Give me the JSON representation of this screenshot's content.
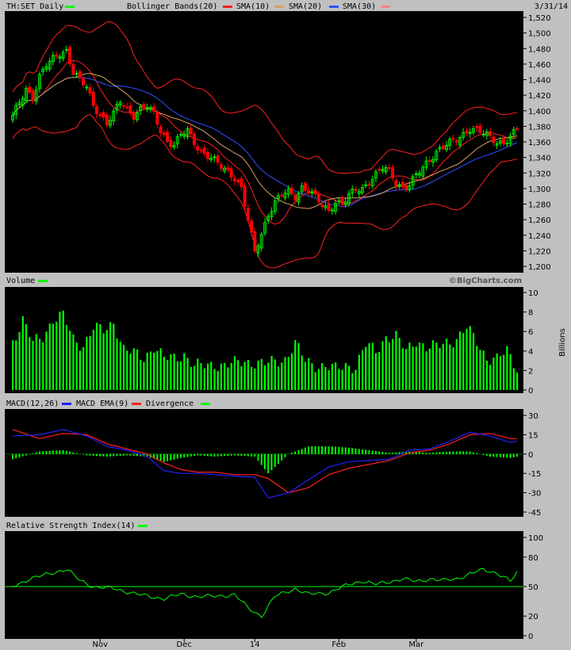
{
  "chart_data": [
    {
      "type": "candlestick",
      "panel": "price",
      "symbol_label": "TH:SET Daily",
      "date_label": "3/31/14",
      "legend": [
        {
          "name": "Bollinger Bands(20)",
          "color": "#ff2020"
        },
        {
          "name": "SMA(10)",
          "color": "#ff2020"
        },
        {
          "name": "SMA(20)",
          "color": "#d8a060"
        },
        {
          "name": "SMA(30)",
          "color": "#3050ff"
        }
      ],
      "ylim": [
        1200,
        1520
      ],
      "y_ticks": [
        "1,520",
        "1,500",
        "1,480",
        "1,460",
        "1,440",
        "1,420",
        "1,400",
        "1,380",
        "1,360",
        "1,340",
        "1,320",
        "1,300",
        "1,280",
        "1,260",
        "1,240",
        "1,220",
        "1,200"
      ],
      "x_tick_labels": [
        "Nov",
        "Dec",
        "14",
        "Feb",
        "Mar"
      ],
      "anchors_close": [
        [
          0,
          1392
        ],
        [
          2,
          1410
        ],
        [
          4,
          1428
        ],
        [
          6,
          1418
        ],
        [
          8,
          1444
        ],
        [
          10,
          1458
        ],
        [
          12,
          1466
        ],
        [
          14,
          1474
        ],
        [
          16,
          1478
        ],
        [
          18,
          1450
        ],
        [
          20,
          1438
        ],
        [
          22,
          1430
        ],
        [
          24,
          1408
        ],
        [
          26,
          1396
        ],
        [
          28,
          1384
        ],
        [
          30,
          1395
        ],
        [
          32,
          1412
        ],
        [
          34,
          1402
        ],
        [
          36,
          1395
        ],
        [
          38,
          1402
        ],
        [
          40,
          1405
        ],
        [
          42,
          1395
        ],
        [
          44,
          1375
        ],
        [
          46,
          1362
        ],
        [
          48,
          1356
        ],
        [
          50,
          1368
        ],
        [
          52,
          1374
        ],
        [
          54,
          1360
        ],
        [
          56,
          1348
        ],
        [
          58,
          1342
        ],
        [
          60,
          1335
        ],
        [
          62,
          1328
        ],
        [
          64,
          1322
        ],
        [
          66,
          1315
        ],
        [
          68,
          1300
        ],
        [
          70,
          1258
        ],
        [
          72,
          1218
        ],
        [
          74,
          1242
        ],
        [
          76,
          1268
        ],
        [
          78,
          1282
        ],
        [
          80,
          1292
        ],
        [
          82,
          1295
        ],
        [
          84,
          1290
        ],
        [
          86,
          1302
        ],
        [
          88,
          1298
        ],
        [
          90,
          1288
        ],
        [
          92,
          1278
        ],
        [
          94,
          1272
        ],
        [
          96,
          1284
        ],
        [
          98,
          1280
        ],
        [
          100,
          1290
        ],
        [
          102,
          1298
        ],
        [
          104,
          1300
        ],
        [
          106,
          1310
        ],
        [
          108,
          1318
        ],
        [
          110,
          1326
        ],
        [
          112,
          1322
        ],
        [
          114,
          1308
        ],
        [
          116,
          1302
        ],
        [
          118,
          1305
        ],
        [
          120,
          1316
        ],
        [
          122,
          1326
        ],
        [
          124,
          1338
        ],
        [
          126,
          1348
        ],
        [
          128,
          1354
        ],
        [
          130,
          1358
        ],
        [
          132,
          1362
        ],
        [
          134,
          1370
        ],
        [
          136,
          1378
        ],
        [
          138,
          1375
        ],
        [
          140,
          1370
        ],
        [
          142,
          1365
        ],
        [
          144,
          1360
        ],
        [
          146,
          1360
        ],
        [
          148,
          1366
        ],
        [
          150,
          1376
        ]
      ]
    },
    {
      "type": "bar",
      "panel": "volume",
      "title": "Volume",
      "ylabel": "Billions",
      "ylim": [
        0,
        10
      ],
      "y_ticks": [
        "10",
        "8",
        "6",
        "4",
        "2",
        "0"
      ],
      "anchors": [
        [
          0,
          5
        ],
        [
          3,
          7.2
        ],
        [
          6,
          4.8
        ],
        [
          9,
          5.5
        ],
        [
          12,
          7.3
        ],
        [
          15,
          7.6
        ],
        [
          18,
          5.2
        ],
        [
          21,
          4.6
        ],
        [
          24,
          6.4
        ],
        [
          27,
          6.0
        ],
        [
          30,
          7.0
        ],
        [
          33,
          4.2
        ],
        [
          36,
          3.7
        ],
        [
          39,
          3.3
        ],
        [
          42,
          4.5
        ],
        [
          45,
          3.2
        ],
        [
          48,
          3.3
        ],
        [
          51,
          3.7
        ],
        [
          54,
          2.4
        ],
        [
          57,
          2.5
        ],
        [
          60,
          2.7
        ],
        [
          63,
          2.5
        ],
        [
          66,
          2.7
        ],
        [
          69,
          3.0
        ],
        [
          72,
          2.8
        ],
        [
          75,
          2.6
        ],
        [
          78,
          3.0
        ],
        [
          81,
          3.2
        ],
        [
          84,
          4.7
        ],
        [
          87,
          3.0
        ],
        [
          90,
          2.6
        ],
        [
          93,
          2.4
        ],
        [
          96,
          2.1
        ],
        [
          99,
          2.6
        ],
        [
          102,
          2.4
        ],
        [
          105,
          4.6
        ],
        [
          108,
          4.0
        ],
        [
          111,
          5.5
        ],
        [
          114,
          5.4
        ],
        [
          117,
          4.0
        ],
        [
          120,
          5.2
        ],
        [
          123,
          4.3
        ],
        [
          126,
          4.4
        ],
        [
          129,
          5.0
        ],
        [
          132,
          5.2
        ],
        [
          135,
          6.3
        ],
        [
          138,
          5.0
        ],
        [
          141,
          3.3
        ],
        [
          144,
          3.1
        ],
        [
          147,
          4.0
        ],
        [
          150,
          2.3
        ]
      ]
    },
    {
      "type": "line",
      "panel": "macd",
      "title": "MACD(12,26)",
      "legend": [
        {
          "name": "MACD(12,26)",
          "color": "#2020ff"
        },
        {
          "name": "MACD EMA(9)",
          "color": "#ff2020"
        },
        {
          "name": "Divergence",
          "color": "#00ff00"
        }
      ],
      "ylim": [
        -45,
        30
      ],
      "y_ticks": [
        "30",
        "15",
        "0",
        "-15",
        "-30",
        "-45"
      ],
      "macd_anchors": [
        [
          0,
          14
        ],
        [
          8,
          15
        ],
        [
          15,
          19
        ],
        [
          22,
          14
        ],
        [
          28,
          6
        ],
        [
          34,
          3
        ],
        [
          40,
          -2
        ],
        [
          45,
          -13
        ],
        [
          50,
          -15
        ],
        [
          55,
          -15
        ],
        [
          60,
          -16
        ],
        [
          66,
          -17
        ],
        [
          72,
          -18
        ],
        [
          76,
          -34
        ],
        [
          82,
          -30
        ],
        [
          88,
          -20
        ],
        [
          94,
          -10
        ],
        [
          100,
          -6
        ],
        [
          106,
          -5
        ],
        [
          112,
          -4
        ],
        [
          118,
          3
        ],
        [
          124,
          4
        ],
        [
          130,
          10
        ],
        [
          136,
          17
        ],
        [
          142,
          14
        ],
        [
          148,
          9
        ],
        [
          150,
          10
        ]
      ],
      "signal_anchors": [
        [
          0,
          19
        ],
        [
          8,
          12
        ],
        [
          15,
          16
        ],
        [
          22,
          15
        ],
        [
          28,
          8
        ],
        [
          34,
          4
        ],
        [
          40,
          0
        ],
        [
          45,
          -7
        ],
        [
          50,
          -12
        ],
        [
          55,
          -14
        ],
        [
          60,
          -14
        ],
        [
          66,
          -16
        ],
        [
          72,
          -16
        ],
        [
          76,
          -19
        ],
        [
          82,
          -30
        ],
        [
          88,
          -26
        ],
        [
          94,
          -16
        ],
        [
          100,
          -11
        ],
        [
          106,
          -8
        ],
        [
          112,
          -5
        ],
        [
          118,
          1
        ],
        [
          124,
          3
        ],
        [
          130,
          8
        ],
        [
          136,
          15
        ],
        [
          142,
          16
        ],
        [
          148,
          12
        ],
        [
          150,
          12
        ]
      ],
      "div_anchors": [
        [
          0,
          -4
        ],
        [
          8,
          2
        ],
        [
          15,
          3
        ],
        [
          22,
          -1
        ],
        [
          28,
          -2
        ],
        [
          34,
          -1
        ],
        [
          40,
          -2
        ],
        [
          45,
          -6
        ],
        [
          50,
          -3
        ],
        [
          55,
          -1
        ],
        [
          60,
          -2
        ],
        [
          66,
          -1
        ],
        [
          72,
          -2
        ],
        [
          76,
          -15
        ],
        [
          82,
          0
        ],
        [
          88,
          6
        ],
        [
          94,
          6
        ],
        [
          100,
          5
        ],
        [
          106,
          3
        ],
        [
          112,
          1
        ],
        [
          118,
          2
        ],
        [
          124,
          1
        ],
        [
          130,
          2
        ],
        [
          136,
          2
        ],
        [
          142,
          -2
        ],
        [
          148,
          -3
        ],
        [
          150,
          -2
        ]
      ]
    },
    {
      "type": "line",
      "panel": "rsi",
      "title": "Relative Strength Index(14)",
      "ylim": [
        0,
        100
      ],
      "y_ticks": [
        "100",
        "80",
        "50",
        "20",
        "0"
      ],
      "reference": 50,
      "anchors": [
        [
          0,
          50
        ],
        [
          5,
          58
        ],
        [
          10,
          62
        ],
        [
          16,
          68
        ],
        [
          20,
          56
        ],
        [
          24,
          50
        ],
        [
          30,
          48
        ],
        [
          35,
          44
        ],
        [
          40,
          40
        ],
        [
          45,
          38
        ],
        [
          50,
          42
        ],
        [
          55,
          40
        ],
        [
          60,
          40
        ],
        [
          66,
          42
        ],
        [
          70,
          28
        ],
        [
          74,
          20
        ],
        [
          78,
          40
        ],
        [
          84,
          48
        ],
        [
          88,
          42
        ],
        [
          94,
          44
        ],
        [
          100,
          52
        ],
        [
          104,
          56
        ],
        [
          108,
          52
        ],
        [
          112,
          55
        ],
        [
          116,
          58
        ],
        [
          120,
          55
        ],
        [
          124,
          58
        ],
        [
          128,
          56
        ],
        [
          132,
          58
        ],
        [
          136,
          63
        ],
        [
          140,
          67
        ],
        [
          144,
          64
        ],
        [
          146,
          60
        ],
        [
          148,
          55
        ],
        [
          150,
          64
        ]
      ]
    }
  ],
  "colors": {
    "panel_bg": "#000000",
    "page_bg": "#c0c0c0",
    "up": "#00ff00",
    "down": "#ff0000"
  },
  "watermark": "©BigCharts.com",
  "n_points": 151
}
